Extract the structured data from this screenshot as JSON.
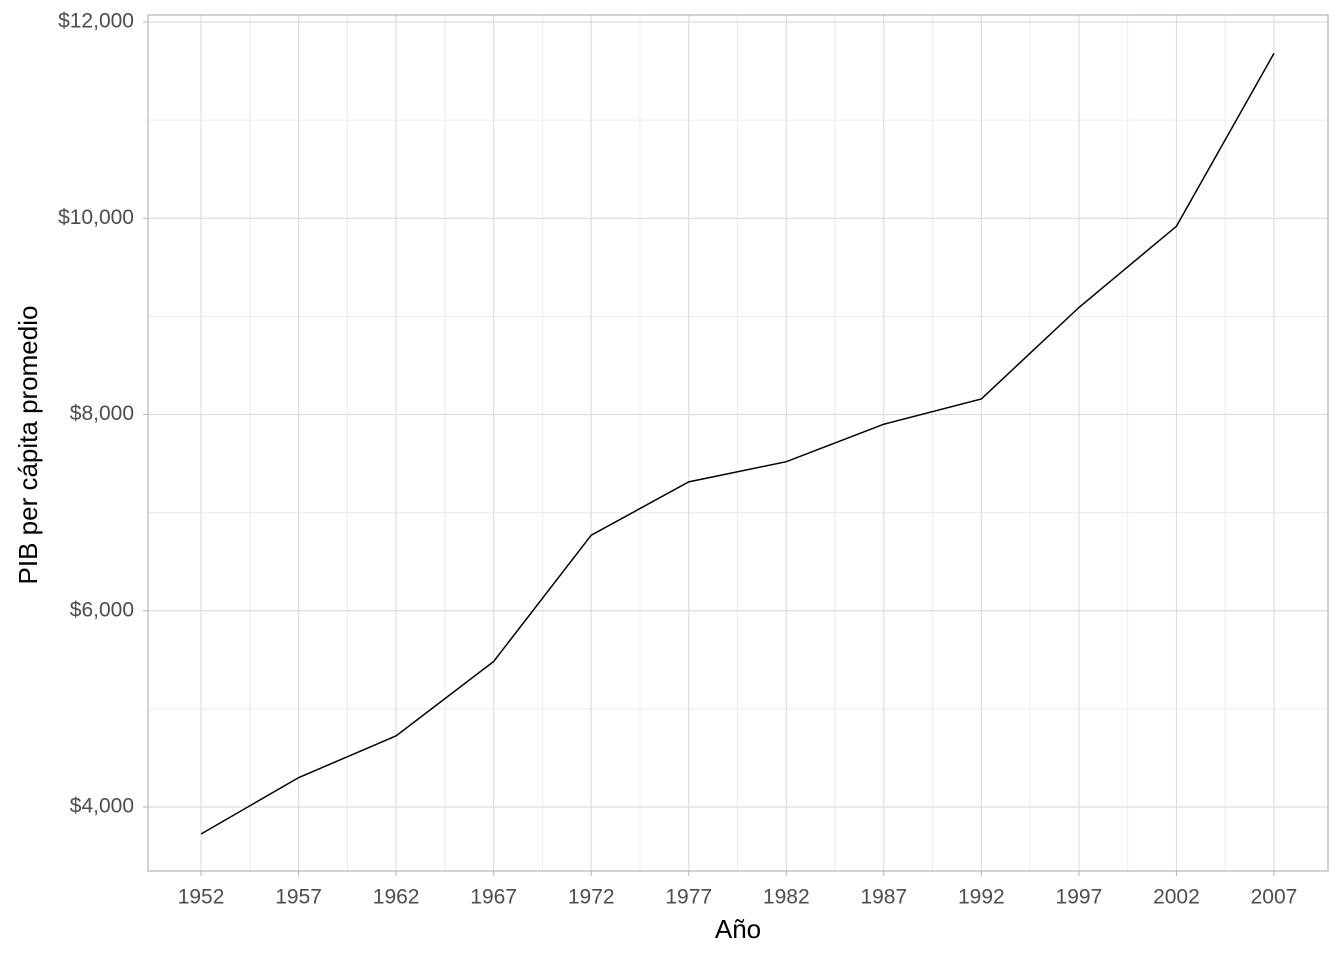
{
  "chart_data": {
    "type": "line",
    "x_label": "Año",
    "y_label": "PIB per cápita promedio",
    "x": [
      1952,
      1957,
      1962,
      1967,
      1972,
      1977,
      1982,
      1987,
      1992,
      1997,
      2002,
      2007
    ],
    "values": [
      3725.3,
      4299.4,
      4725.3,
      5483.7,
      6770.1,
      7313.2,
      7518.9,
      7900.9,
      8158.6,
      9090.2,
      9917.8,
      11680.1
    ],
    "color": "#000000",
    "xlim": [
      1949.28,
      2009.77
    ],
    "ylim": [
      3348,
      12071
    ],
    "xticks": [
      1952,
      1957,
      1962,
      1967,
      1972,
      1977,
      1982,
      1987,
      1992,
      1997,
      2002,
      2007
    ],
    "yticks": [
      {
        "value": 4000,
        "label": "$4,000"
      },
      {
        "value": 6000,
        "label": "$6,000"
      },
      {
        "value": 8000,
        "label": "$8,000"
      },
      {
        "value": 10000,
        "label": "$10,000"
      },
      {
        "value": 12000,
        "label": "$12,000"
      }
    ],
    "grid": true
  }
}
